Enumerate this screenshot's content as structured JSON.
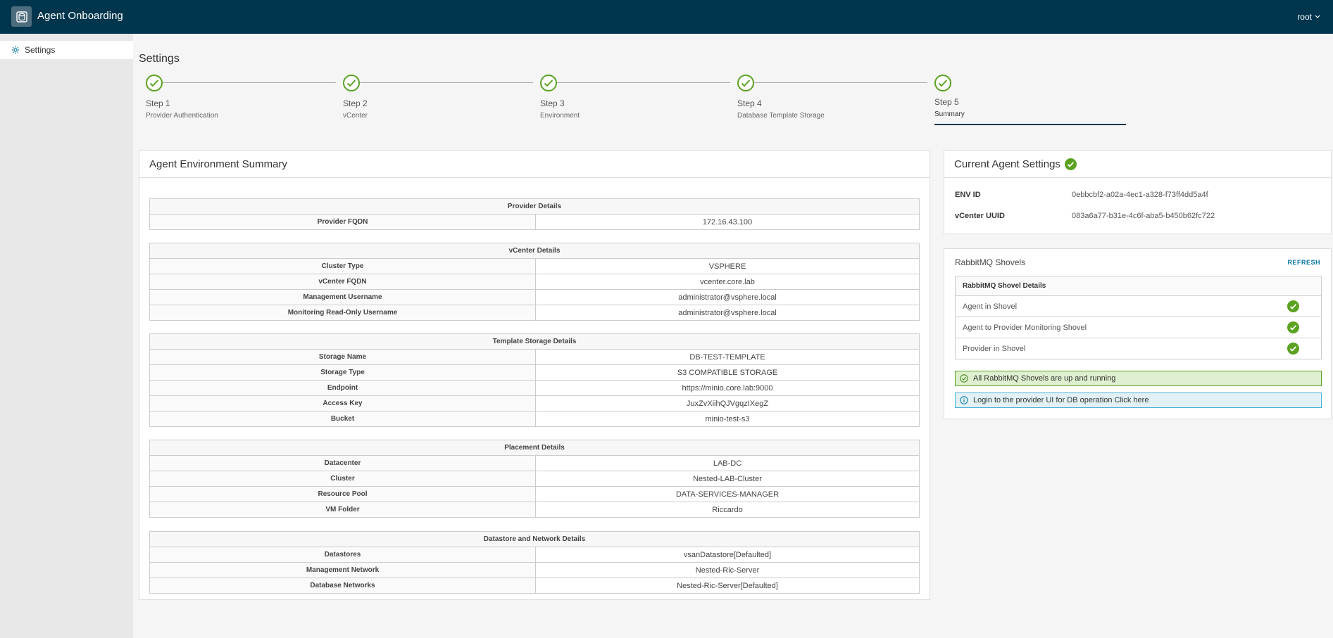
{
  "header": {
    "app_title": "Agent Onboarding",
    "user": "root",
    "logo_icon": "database-icon",
    "bg_color": "#00364d"
  },
  "sidebar": {
    "items": [
      {
        "label": "Settings",
        "icon": "gear-icon"
      }
    ]
  },
  "page": {
    "title": "Settings"
  },
  "stepper": {
    "steps": [
      {
        "num": "Step 1",
        "name": "Provider Authentication",
        "status": "complete"
      },
      {
        "num": "Step 2",
        "name": "vCenter",
        "status": "complete"
      },
      {
        "num": "Step 3",
        "name": "Environment",
        "status": "complete"
      },
      {
        "num": "Step 4",
        "name": "Database Template Storage",
        "status": "complete"
      },
      {
        "num": "Step 5",
        "name": "Summary",
        "status": "active"
      }
    ]
  },
  "summary": {
    "title": "Agent Environment Summary",
    "sections": [
      {
        "heading": "Provider Details",
        "rows": [
          {
            "label": "Provider FQDN",
            "value": "172.16.43.100"
          }
        ]
      },
      {
        "heading": "vCenter Details",
        "rows": [
          {
            "label": "Cluster Type",
            "value": "VSPHERE"
          },
          {
            "label": "vCenter FQDN",
            "value": "vcenter.core.lab"
          },
          {
            "label": "Management Username",
            "value": "administrator@vsphere.local"
          },
          {
            "label": "Monitoring Read-Only Username",
            "value": "administrator@vsphere.local"
          }
        ]
      },
      {
        "heading": "Template Storage Details",
        "rows": [
          {
            "label": "Storage Name",
            "value": "DB-TEST-TEMPLATE"
          },
          {
            "label": "Storage Type",
            "value": "S3 COMPATIBLE STORAGE"
          },
          {
            "label": "Endpoint",
            "value": "https://minio.core.lab:9000"
          },
          {
            "label": "Access Key",
            "value": "JuxZvXiihQJVgqzIXegZ"
          },
          {
            "label": "Bucket",
            "value": "minio-test-s3"
          }
        ]
      },
      {
        "heading": "Placement Details",
        "rows": [
          {
            "label": "Datacenter",
            "value": "LAB-DC"
          },
          {
            "label": "Cluster",
            "value": "Nested-LAB-Cluster"
          },
          {
            "label": "Resource Pool",
            "value": "DATA-SERVICES-MANAGER"
          },
          {
            "label": "VM Folder",
            "value": "Riccardo"
          }
        ]
      },
      {
        "heading": "Datastore and Network Details",
        "rows": [
          {
            "label": "Datastores",
            "value": "vsanDatastore[Defaulted]"
          },
          {
            "label": "Management Network",
            "value": "Nested-Ric-Server"
          },
          {
            "label": "Database Networks",
            "value": "Nested-Ric-Server[Defaulted]"
          }
        ]
      }
    ]
  },
  "agent_settings": {
    "title": "Current Agent Settings",
    "env_id_label": "ENV ID",
    "env_id": "0ebbcbf2-a02a-4ec1-a328-f73ff4dd5a4f",
    "vcenter_uuid_label": "vCenter UUID",
    "vcenter_uuid": "083a6a77-b31e-4c6f-aba5-b450b62fc722"
  },
  "rabbitmq": {
    "title": "RabbitMQ Shovels",
    "refresh_label": "REFRESH",
    "table_header": "RabbitMQ Shovel Details",
    "shovels": [
      {
        "name": "Agent in Shovel",
        "status": "ok"
      },
      {
        "name": "Agent to Provider Monitoring Shovel",
        "status": "ok"
      },
      {
        "name": "Provider in Shovel",
        "status": "ok"
      }
    ],
    "success_message": "All RabbitMQ Shovels are up and running",
    "info_message": "Login to the provider UI for DB operation Click here"
  },
  "colors": {
    "success": "#5aa220",
    "info": "#49afd9",
    "link": "#0072a3"
  }
}
